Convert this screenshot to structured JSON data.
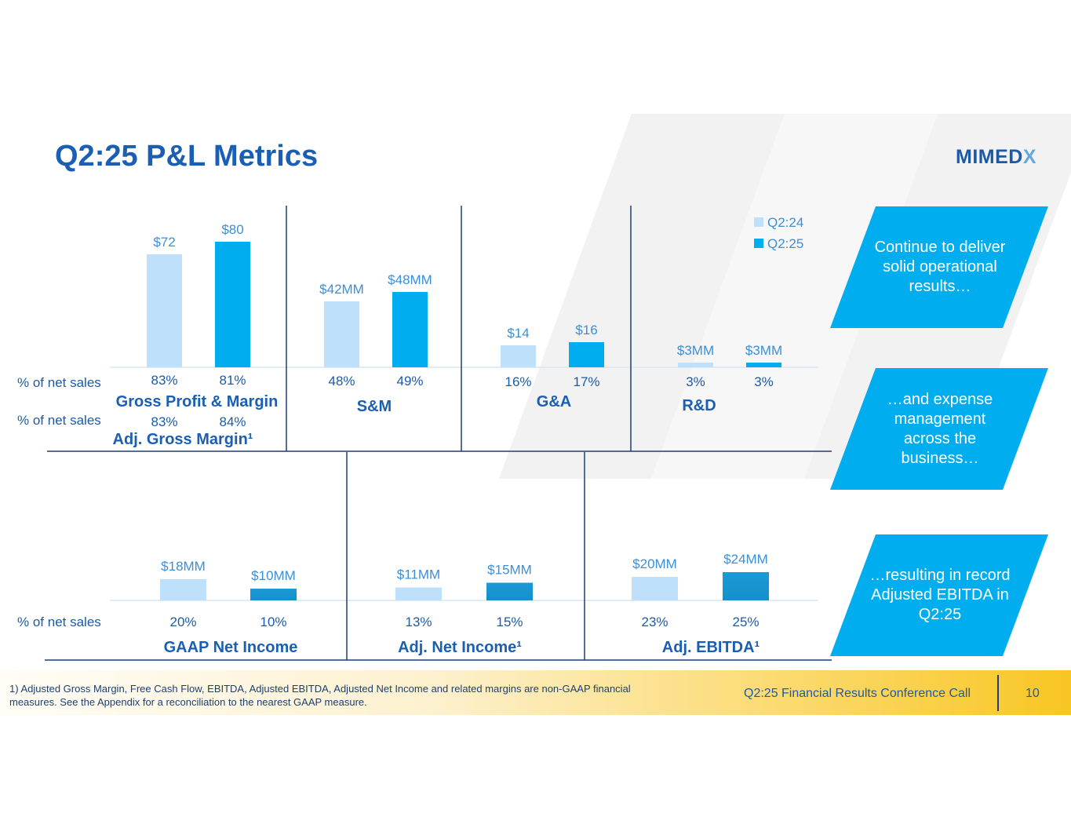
{
  "title": "Q2:25 P&L Metrics",
  "logo": {
    "main": "MIMED",
    "accent": "X"
  },
  "colors": {
    "q224": "#bfe0fb",
    "q225_top": "#00aeef",
    "q225_bottom": "#1b9ad6",
    "title": "#1a5fb4",
    "callout": "#00aeef"
  },
  "legend": {
    "items": [
      "Q2:24",
      "Q2:25"
    ]
  },
  "row_labels": {
    "pct_net_sales": "% of net sales"
  },
  "chart_data": [
    {
      "type": "bar",
      "panel": "top",
      "series": [
        {
          "name": "Q2:24"
        },
        {
          "name": "Q2:25"
        }
      ],
      "groups": [
        {
          "label": "Gross Profit & Margin",
          "values": [
            72,
            80
          ],
          "value_labels": [
            "$72",
            "$80"
          ],
          "pct": [
            "83%",
            "81%"
          ],
          "sub_label": "Adj. Gross Margin¹",
          "sub_pct": [
            "83%",
            "84%"
          ]
        },
        {
          "label": "S&M",
          "values": [
            42,
            48
          ],
          "value_labels": [
            "$42MM",
            "$48MM"
          ],
          "pct": [
            "48%",
            "49%"
          ]
        },
        {
          "label": "G&A",
          "values": [
            14,
            16
          ],
          "value_labels": [
            "$14",
            "$16"
          ],
          "pct": [
            "16%",
            "17%"
          ]
        },
        {
          "label": "R&D",
          "values": [
            3,
            3
          ],
          "value_labels": [
            "$3MM",
            "$3MM"
          ],
          "pct": [
            "3%",
            "3%"
          ]
        }
      ]
    },
    {
      "type": "bar",
      "panel": "bottom",
      "series": [
        {
          "name": "Q2:24"
        },
        {
          "name": "Q2:25"
        }
      ],
      "groups": [
        {
          "label": "GAAP Net Income",
          "values": [
            18,
            10
          ],
          "value_labels": [
            "$18MM",
            "$10MM"
          ],
          "pct": [
            "20%",
            "10%"
          ]
        },
        {
          "label": "Adj. Net Income¹",
          "values": [
            11,
            15
          ],
          "value_labels": [
            "$11MM",
            "$15MM"
          ],
          "pct": [
            "13%",
            "15%"
          ]
        },
        {
          "label": "Adj. EBITDA¹",
          "values": [
            20,
            24
          ],
          "value_labels": [
            "$20MM",
            "$24MM"
          ],
          "pct": [
            "23%",
            "25%"
          ]
        }
      ]
    }
  ],
  "callouts": [
    "Continue to deliver solid operational results…",
    "…and expense management across the business…",
    "…resulting in record Adjusted EBITDA in Q2:25"
  ],
  "footer": {
    "footnote": "1) Adjusted Gross Margin, Free Cash Flow, EBITDA, Adjusted EBITDA, Adjusted Net Income and related margins are non-GAAP financial measures. See the Appendix for a reconciliation to the nearest GAAP measure.",
    "conference": "Q2:25 Financial Results Conference Call",
    "page_number": "10"
  }
}
